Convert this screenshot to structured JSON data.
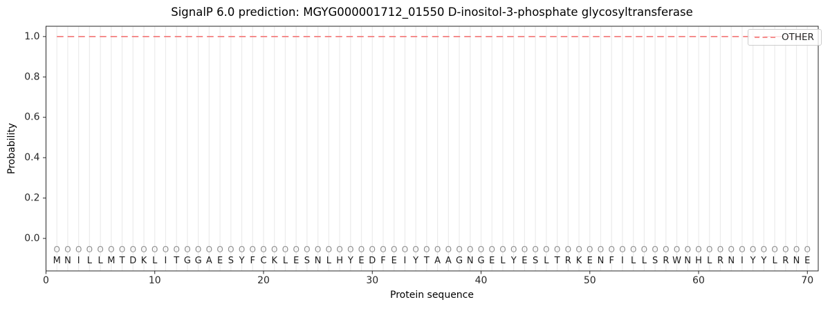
{
  "chart_data": {
    "type": "line",
    "title": "SignalP 6.0 prediction: MGYG000001712_01550 D-inositol-3-phosphate glycosyltransferase",
    "xlabel": "Protein sequence",
    "ylabel": "Probability",
    "xlim": [
      0,
      71
    ],
    "ylim": [
      -0.161,
      1.051
    ],
    "xticks": [
      0,
      10,
      20,
      30,
      40,
      50,
      60,
      70
    ],
    "yticks": [
      0.0,
      0.2,
      0.4,
      0.6,
      0.8,
      1.0
    ],
    "grid": "vertical gridline at every residue position",
    "sequence": "MNILLMTDKLITGGAESYFCKLESNLHYEDFEIYTAAGNGELYESLTRKENFILLSRWNHLRNIYYLRNE",
    "per_residue_label": "O",
    "series": [
      {
        "name": "OTHER",
        "style": "dashed",
        "color": "#f47d7d",
        "x": [
          1,
          2,
          3,
          4,
          5,
          6,
          7,
          8,
          9,
          10,
          11,
          12,
          13,
          14,
          15,
          16,
          17,
          18,
          19,
          20,
          21,
          22,
          23,
          24,
          25,
          26,
          27,
          28,
          29,
          30,
          31,
          32,
          33,
          34,
          35,
          36,
          37,
          38,
          39,
          40,
          41,
          42,
          43,
          44,
          45,
          46,
          47,
          48,
          49,
          50,
          51,
          52,
          53,
          54,
          55,
          56,
          57,
          58,
          59,
          60,
          61,
          62,
          63,
          64,
          65,
          66,
          67,
          68,
          69,
          70
        ],
        "values": [
          1.0,
          1.0,
          1.0,
          1.0,
          1.0,
          1.0,
          1.0,
          1.0,
          1.0,
          1.0,
          1.0,
          1.0,
          1.0,
          1.0,
          1.0,
          1.0,
          1.0,
          1.0,
          1.0,
          1.0,
          1.0,
          1.0,
          1.0,
          1.0,
          1.0,
          1.0,
          1.0,
          1.0,
          1.0,
          1.0,
          1.0,
          1.0,
          1.0,
          1.0,
          1.0,
          1.0,
          1.0,
          1.0,
          1.0,
          1.0,
          1.0,
          1.0,
          1.0,
          1.0,
          1.0,
          1.0,
          1.0,
          1.0,
          1.0,
          1.0,
          1.0,
          1.0,
          1.0,
          1.0,
          1.0,
          1.0,
          1.0,
          1.0,
          1.0,
          1.0,
          1.0,
          1.0,
          1.0,
          1.0,
          1.0,
          1.0,
          1.0,
          1.0,
          1.0,
          1.0
        ]
      }
    ],
    "legend": {
      "position": "upper right",
      "entries": [
        {
          "label": "OTHER",
          "color": "#f47d7d",
          "style": "dashed"
        }
      ]
    },
    "colors": {
      "grid": "#ebebeb",
      "spine": "#262626",
      "residue_letter": "#1c1c1c",
      "residue_marker": "#8f8f8f",
      "tick_label": "#262626",
      "background": "#ffffff"
    }
  }
}
